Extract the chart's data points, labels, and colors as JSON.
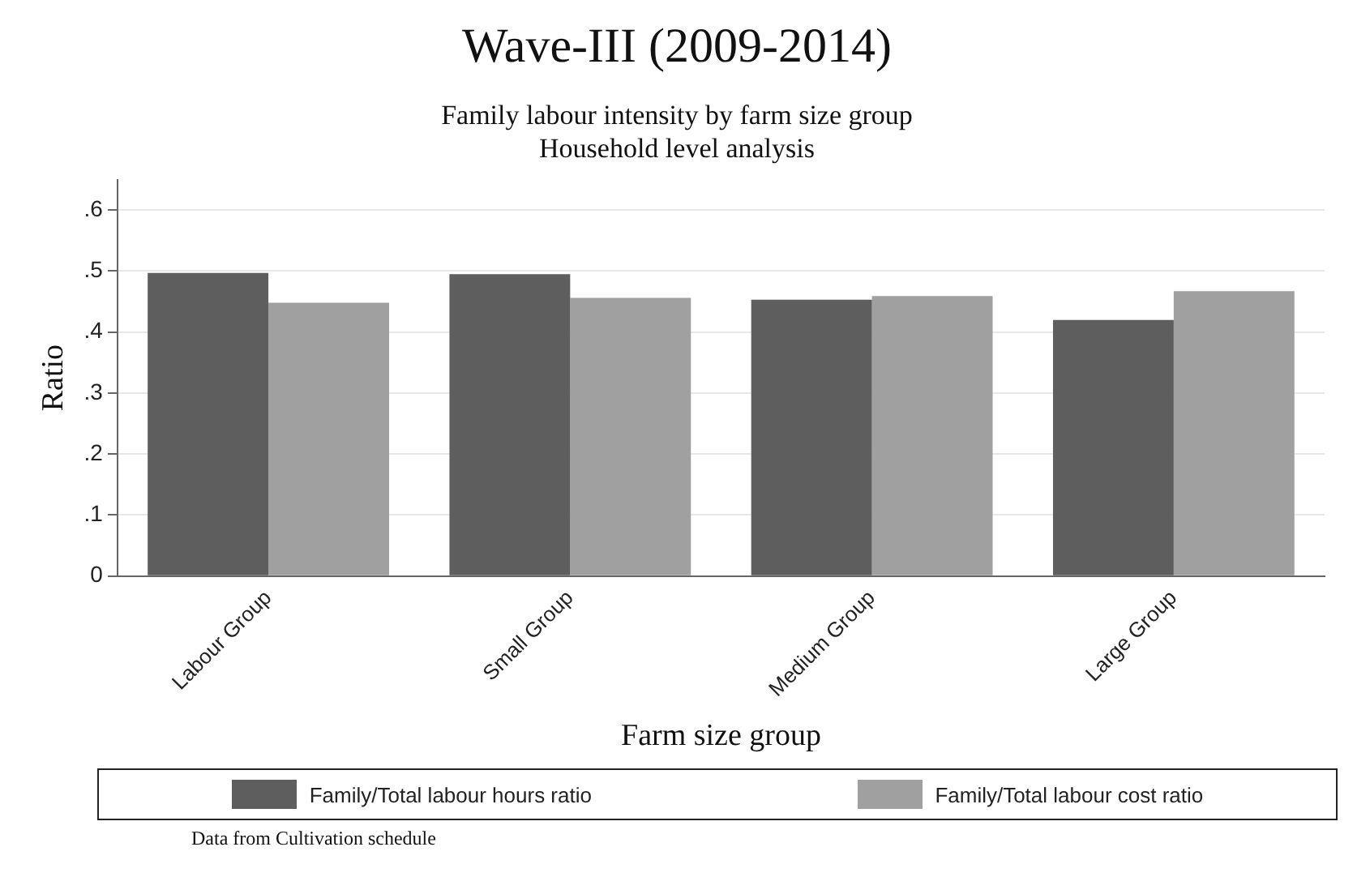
{
  "chart_data": {
    "type": "bar",
    "title": "Wave-III (2009-2014)",
    "subtitle": "Family labour intensity by farm size group\nHousehold level analysis",
    "xlabel": "Farm size group",
    "ylabel": "Ratio",
    "categories": [
      "Labour Group",
      "Small Group",
      "Medium Group",
      "Large Group"
    ],
    "series": [
      {
        "name": "Family/Total labour hours ratio",
        "color": "#5e5e5e",
        "values": [
          0.497,
          0.495,
          0.453,
          0.42
        ]
      },
      {
        "name": "Family/Total labour cost ratio",
        "color": "#a0a0a0",
        "values": [
          0.448,
          0.456,
          0.459,
          0.467
        ]
      }
    ],
    "ylim": [
      0,
      0.65
    ],
    "yticks": [
      0,
      {
        "value": 0.1,
        "label": ".1"
      },
      {
        "value": 0.2,
        "label": ".2"
      },
      {
        "value": 0.3,
        "label": ".3"
      },
      {
        "value": 0.4,
        "label": ".4"
      },
      {
        "value": 0.5,
        "label": ".5"
      },
      {
        "value": 0.6,
        "label": ".6"
      }
    ],
    "grid": "y",
    "legend": "bottom",
    "annotations": [
      "Data from Cultivation schedule"
    ]
  }
}
